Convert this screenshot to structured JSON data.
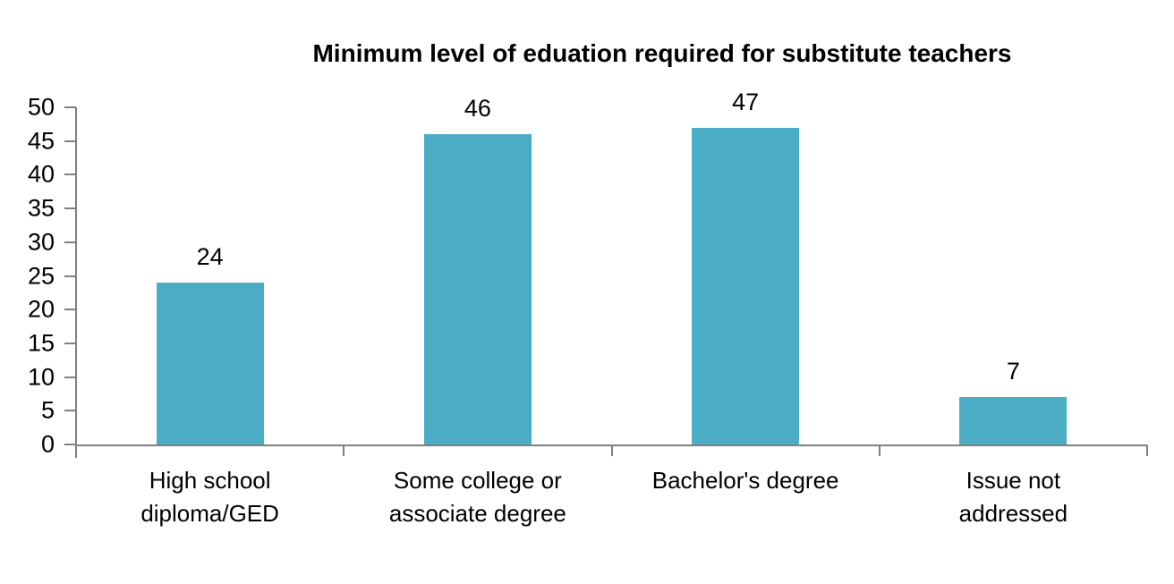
{
  "chart_data": {
    "type": "bar",
    "title": "Minimum level of eduation required for substitute teachers",
    "categories": [
      "High school\ndiploma/GED",
      "Some college or\nassociate degree",
      "Bachelor's degree",
      "Issue not addressed"
    ],
    "values": [
      24,
      46,
      47,
      7
    ],
    "data_labels": [
      "24",
      "46",
      "47",
      "7"
    ],
    "xlabel": "",
    "ylabel": "",
    "ylim": [
      0,
      50
    ],
    "y_ticks": [
      0,
      5,
      10,
      15,
      20,
      25,
      30,
      35,
      40,
      45,
      50
    ],
    "grid": false,
    "legend": false,
    "bar_color": "#4BACC6",
    "axis_color": "#808080",
    "text_color": "#000000",
    "background_color": "#FFFFFF"
  }
}
